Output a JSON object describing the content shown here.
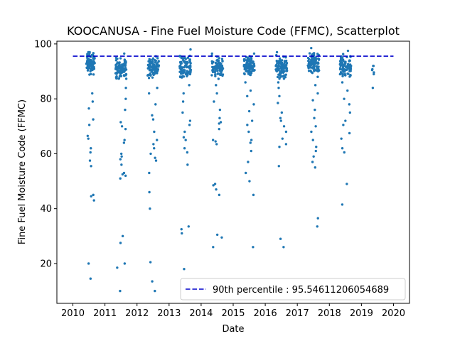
{
  "chart_data": {
    "type": "scatter",
    "title": "KOOCANUSA - Fine Fuel Moisture Code (FFMC), Scatterplot",
    "xlabel": "Date",
    "ylabel": "Fine Fuel Moisture Code (FFMC)",
    "xlim": [
      2009.5,
      2020.5
    ],
    "ylim": [
      5.5,
      101
    ],
    "xticks": [
      2010,
      2011,
      2012,
      2013,
      2014,
      2015,
      2016,
      2017,
      2018,
      2019,
      2020
    ],
    "yticks": [
      20,
      40,
      60,
      80,
      100
    ],
    "grid": false,
    "legend_position": "lower right",
    "reference_line": {
      "label": "90th percentile : 95.54611206054689",
      "value": 95.54611206054689,
      "x_range": [
        2010,
        2020
      ],
      "color": "#0000cc",
      "style": "dashed"
    },
    "series": [
      {
        "color": "#1f77b4",
        "season_clusters": [
          {
            "year": 2010,
            "x_range": [
              2010.42,
              2010.68
            ],
            "highs": [
              97.0,
              92.0
            ],
            "center": 93.0,
            "spread": 4.5,
            "outliers": [
              82,
              79,
              76.5,
              72.5,
              70.5,
              66.5,
              65.5,
              62,
              60.5,
              57.5,
              55.5,
              45,
              44.5,
              43,
              20,
              14.5
            ]
          },
          {
            "year": 2011,
            "x_range": [
              2011.33,
              2011.68
            ],
            "highs": [
              96.5,
              91.0
            ],
            "center": 91.0,
            "spread": 4.5,
            "outliers": [
              84,
              80,
              76,
              71.5,
              70,
              69,
              65,
              64,
              60,
              59,
              58,
              56,
              53,
              52.5,
              52,
              51,
              30,
              27.5,
              20,
              18.5,
              10
            ]
          },
          {
            "year": 2012,
            "x_range": [
              2012.33,
              2012.68
            ],
            "highs": [
              95.5,
              90.5
            ],
            "center": 91.0,
            "spread": 4.5,
            "outliers": [
              84,
              82,
              78,
              74,
              72.5,
              68,
              65,
              63.5,
              62,
              60,
              58.5,
              57.5,
              53,
              46,
              40,
              20.5,
              13.5,
              10
            ]
          },
          {
            "year": 2013,
            "x_range": [
              2013.33,
              2013.68
            ],
            "highs": [
              98.0,
              92.0
            ],
            "center": 91.5,
            "spread": 4.5,
            "outliers": [
              85,
              82,
              79,
              75,
              72,
              70.5,
              68,
              66,
              65,
              62,
              60.5,
              56,
              33.5,
              32.5,
              31,
              18
            ]
          },
          {
            "year": 2014,
            "x_range": [
              2014.33,
              2014.68
            ],
            "highs": [
              96.5,
              92.0
            ],
            "center": 91.5,
            "spread": 4.5,
            "outliers": [
              85,
              82,
              79,
              76,
              73,
              71.5,
              71,
              69,
              65,
              64.5,
              63.5,
              49,
              48.5,
              47,
              45,
              30.5,
              29.5,
              26
            ]
          },
          {
            "year": 2015,
            "x_range": [
              2015.33,
              2015.68
            ],
            "highs": [
              96.5,
              92.5
            ],
            "center": 92.0,
            "spread": 4.0,
            "outliers": [
              86,
              83,
              81,
              78,
              75.5,
              72,
              70.5,
              68,
              65,
              64,
              61,
              57,
              53,
              50,
              45,
              26
            ]
          },
          {
            "year": 2016,
            "x_range": [
              2016.33,
              2016.68
            ],
            "highs": [
              97.0,
              92.0
            ],
            "center": 91.5,
            "spread": 4.5,
            "outliers": [
              86,
              84,
              81,
              78.5,
              75,
              73,
              72,
              70,
              68,
              65.5,
              63.5,
              62.5,
              55.5,
              29,
              26
            ]
          },
          {
            "year": 2017,
            "x_range": [
              2017.33,
              2017.68
            ],
            "highs": [
              98.5,
              93.5
            ],
            "center": 93.0,
            "spread": 4.0,
            "outliers": [
              88,
              85,
              82,
              79.5,
              76,
              73,
              70,
              68,
              65,
              62.5,
              61,
              59,
              57,
              55,
              36.5,
              33.5
            ]
          },
          {
            "year": 2018,
            "x_range": [
              2018.33,
              2018.68
            ],
            "highs": [
              97.5,
              92.5
            ],
            "center": 92.0,
            "spread": 4.5,
            "outliers": [
              86,
              83,
              80,
              78,
              75,
              72,
              70.5,
              67.5,
              65.5,
              62,
              60.5,
              49,
              41.5
            ]
          },
          {
            "year": 2019,
            "x_range": [
              2019.3,
              2019.4
            ],
            "highs": [
              92.0
            ],
            "center": 90.5,
            "spread": 2.0,
            "outliers": [
              84,
              92
            ]
          }
        ]
      }
    ]
  }
}
